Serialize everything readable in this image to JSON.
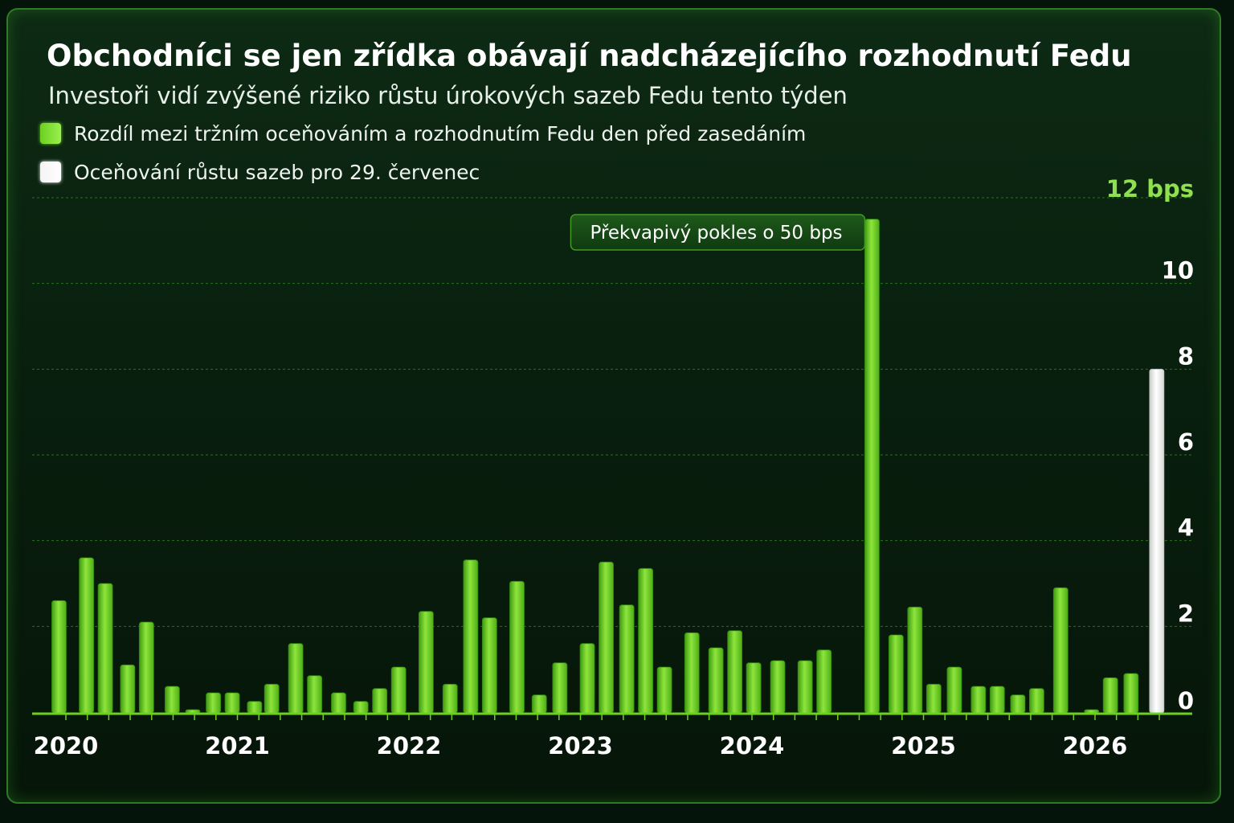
{
  "title": "Obchodníci se jen zřídka obávají nadcházejícího rozhodnutí Fedu",
  "subtitle": "Investoři vidí zvýšené riziko růstu úrokových sazeb Fedu tento týden",
  "legend": [
    {
      "label": "Rozdíl mezi tržním oceňováním a rozhodnutím Fedu den před zasedáním",
      "color": "#6ccf22"
    },
    {
      "label": "Oceňování růstu sazeb pro 29. červenec",
      "color": "#f4f4f4"
    }
  ],
  "chart_data": {
    "type": "bar",
    "title": "Obchodníci se jen zřídka obávají nadcházejícího rozhodnutí Fedu",
    "subtitle": "Investoři vidí zvýšené riziko růstu úrokových sazeb Fedu tento týden",
    "unit": "bps",
    "ylim": [
      0,
      12
    ],
    "yticks": [
      {
        "value": 0,
        "label": "0"
      },
      {
        "value": 2,
        "label": "2"
      },
      {
        "value": 4,
        "label": "4"
      },
      {
        "value": 6,
        "label": "6"
      },
      {
        "value": 8,
        "label": "8"
      },
      {
        "value": 10,
        "label": "10"
      },
      {
        "value": 12,
        "label": "12 bps"
      }
    ],
    "xlim": [
      2020,
      2026.75
    ],
    "xticks": [
      "2020",
      "2021",
      "2022",
      "2023",
      "2024",
      "2025",
      "2026"
    ],
    "grid": true,
    "legend_position": "top-left",
    "series": [
      {
        "name": "Rozdíl mezi tržním oceňováním a rozhodnutím Fedu den před zasedáním",
        "color": "#6ccf22",
        "points": [
          {
            "x": 2019.96,
            "y": 2.6
          },
          {
            "x": 2020.12,
            "y": 3.6
          },
          {
            "x": 2020.23,
            "y": 3.0
          },
          {
            "x": 2020.36,
            "y": 1.1
          },
          {
            "x": 2020.47,
            "y": 2.1
          },
          {
            "x": 2020.62,
            "y": 0.6
          },
          {
            "x": 2020.74,
            "y": 0.05
          },
          {
            "x": 2020.86,
            "y": 0.45
          },
          {
            "x": 2020.97,
            "y": 0.45
          },
          {
            "x": 2021.1,
            "y": 0.25
          },
          {
            "x": 2021.2,
            "y": 0.65
          },
          {
            "x": 2021.34,
            "y": 1.6
          },
          {
            "x": 2021.45,
            "y": 0.85
          },
          {
            "x": 2021.59,
            "y": 0.45
          },
          {
            "x": 2021.72,
            "y": 0.25
          },
          {
            "x": 2021.83,
            "y": 0.55
          },
          {
            "x": 2021.94,
            "y": 1.05
          },
          {
            "x": 2022.1,
            "y": 2.35
          },
          {
            "x": 2022.24,
            "y": 0.65
          },
          {
            "x": 2022.36,
            "y": 3.55
          },
          {
            "x": 2022.47,
            "y": 2.2
          },
          {
            "x": 2022.63,
            "y": 3.05
          },
          {
            "x": 2022.76,
            "y": 0.4
          },
          {
            "x": 2022.88,
            "y": 1.15
          },
          {
            "x": 2023.04,
            "y": 1.6
          },
          {
            "x": 2023.15,
            "y": 3.5
          },
          {
            "x": 2023.27,
            "y": 2.5
          },
          {
            "x": 2023.38,
            "y": 3.35
          },
          {
            "x": 2023.49,
            "y": 1.05
          },
          {
            "x": 2023.65,
            "y": 1.85
          },
          {
            "x": 2023.79,
            "y": 1.5
          },
          {
            "x": 2023.9,
            "y": 1.9
          },
          {
            "x": 2024.01,
            "y": 1.15
          },
          {
            "x": 2024.15,
            "y": 1.2
          },
          {
            "x": 2024.31,
            "y": 1.2
          },
          {
            "x": 2024.42,
            "y": 1.45
          },
          {
            "x": 2024.7,
            "y": 11.5
          },
          {
            "x": 2024.84,
            "y": 1.8
          },
          {
            "x": 2024.95,
            "y": 2.45
          },
          {
            "x": 2025.06,
            "y": 0.65
          },
          {
            "x": 2025.18,
            "y": 1.05
          },
          {
            "x": 2025.32,
            "y": 0.6
          },
          {
            "x": 2025.43,
            "y": 0.6
          },
          {
            "x": 2025.55,
            "y": 0.4
          },
          {
            "x": 2025.66,
            "y": 0.55
          },
          {
            "x": 2025.8,
            "y": 2.9
          },
          {
            "x": 2025.98,
            "y": 0.05
          },
          {
            "x": 2026.09,
            "y": 0.8
          },
          {
            "x": 2026.21,
            "y": 0.9
          }
        ]
      },
      {
        "name": "Oceňování růstu sazeb pro 29. červenec",
        "color": "#f4f4f4",
        "points": [
          {
            "x": 2026.36,
            "y": 8.0
          }
        ]
      }
    ],
    "annotations": [
      {
        "text": "Překvapivý pokles o 50 bps",
        "x": 2024.7,
        "y": 11.5
      }
    ]
  }
}
